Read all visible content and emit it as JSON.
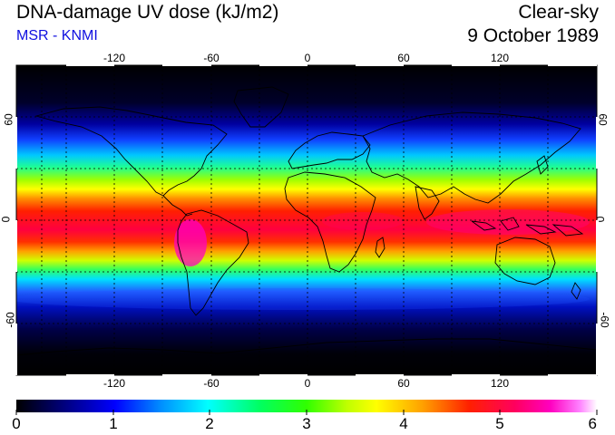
{
  "header": {
    "title": "DNA-damage UV dose (kJ/m2)",
    "subtitle": "MSR - KNMI",
    "condition": "Clear-sky",
    "date": "9 October 1989"
  },
  "map": {
    "lon_ticks": [
      "-120",
      "-60",
      "0",
      "60",
      "120"
    ],
    "lat_ticks": [
      "60",
      "0",
      "-60"
    ],
    "lon_range": [
      -180,
      180
    ],
    "lat_range": [
      -90,
      90
    ],
    "grid_lon": [
      -150,
      -120,
      -90,
      -60,
      -30,
      0,
      30,
      60,
      90,
      120,
      150
    ],
    "grid_lat": [
      -60,
      -30,
      0,
      30,
      60
    ]
  },
  "colorbar": {
    "labels": [
      "0",
      "1",
      "2",
      "3",
      "4",
      "5",
      "6"
    ],
    "range": [
      0,
      6
    ],
    "colors": [
      "#000000",
      "#00007a",
      "#0000ff",
      "#0090ff",
      "#00ffff",
      "#00ff60",
      "#30ff00",
      "#c0ff00",
      "#ffff00",
      "#ffa000",
      "#ff2000",
      "#ff0060",
      "#ff00c0",
      "#ff80ff",
      "#ffffff"
    ]
  }
}
